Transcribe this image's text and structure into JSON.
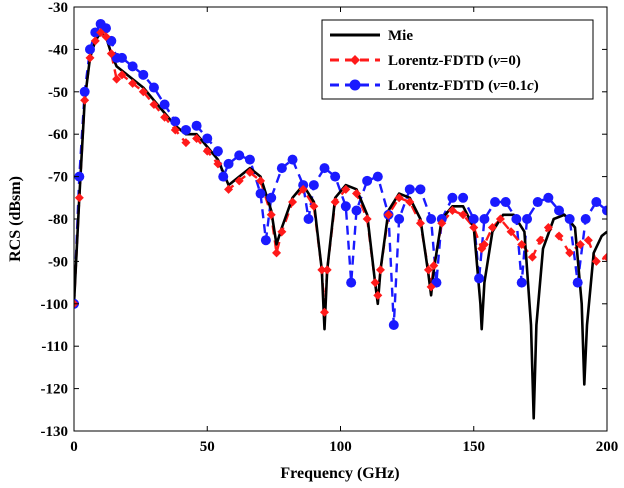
{
  "chart_data": {
    "type": "line",
    "title": "",
    "xlabel": "Frequency (GHz)",
    "ylabel": "RCS (dBsm)",
    "xlim": [
      0,
      200
    ],
    "ylim": [
      -130,
      -30
    ],
    "xticks": [
      0,
      50,
      100,
      150,
      200
    ],
    "yticks": [
      -130,
      -120,
      -110,
      -100,
      -90,
      -80,
      -70,
      -60,
      -50,
      -40,
      -30
    ],
    "xtick_labels": [
      "0",
      "50",
      "100",
      "150",
      "200"
    ],
    "ytick_labels": [
      "-130",
      "-120",
      "-110",
      "-100",
      "-90",
      "-80",
      "-70",
      "-60",
      "-50",
      "-40",
      "-30"
    ],
    "grid": false,
    "legend_position": "top-right",
    "series": [
      {
        "name": "Mie",
        "legend_main": "Mie",
        "legend_italic": "",
        "legend_tail": "",
        "color": "#000000",
        "style": "solid",
        "marker": "none",
        "x": [
          0,
          2,
          4,
          6,
          8,
          10,
          12,
          14,
          16,
          18,
          22,
          26,
          30,
          34,
          38,
          42,
          46,
          50,
          54,
          58,
          62,
          66,
          70,
          74,
          76,
          78,
          82,
          86,
          90,
          93,
          94,
          95,
          98,
          102,
          106,
          110,
          113,
          114,
          115,
          118,
          122,
          126,
          130,
          133,
          134,
          135,
          138,
          142,
          146,
          150,
          152.5,
          153,
          154,
          157,
          161,
          165,
          169,
          171.5,
          172.5,
          173.5,
          176,
          180,
          184,
          188,
          190.5,
          191.5,
          192.5,
          195,
          198,
          200
        ],
        "y": [
          -100,
          -75,
          -52,
          -42,
          -38,
          -36,
          -37,
          -41,
          -44,
          -45,
          -47,
          -49,
          -52,
          -55,
          -58,
          -60,
          -60,
          -63,
          -66,
          -72,
          -70,
          -68,
          -70,
          -78,
          -86,
          -82,
          -75,
          -72,
          -76,
          -92,
          -106,
          -92,
          -75,
          -72,
          -73,
          -79,
          -95,
          -100,
          -92,
          -78,
          -74,
          -75,
          -80,
          -93,
          -98,
          -92,
          -80,
          -77,
          -77,
          -82,
          -100,
          -106,
          -95,
          -83,
          -79,
          -79,
          -83,
          -105,
          -127,
          -105,
          -87,
          -80,
          -79,
          -82,
          -100,
          -119,
          -105,
          -88,
          -84,
          -83
        ]
      },
      {
        "name": "Lorentz-FDTD (v=0)",
        "legend_main": "Lorentz-FDTD (",
        "legend_italic": "v",
        "legend_tail": "=0)",
        "color": "#ff1a1a",
        "style": "dashed",
        "marker": "diamond",
        "x": [
          0,
          2,
          4,
          6,
          8,
          10,
          12,
          14,
          16,
          18,
          22,
          26,
          30,
          34,
          38,
          42,
          46,
          50,
          54,
          58,
          62,
          66,
          70,
          74,
          76,
          78,
          82,
          86,
          90,
          93,
          94,
          95,
          98,
          102,
          106,
          110,
          113,
          114,
          115,
          118,
          122,
          126,
          130,
          133,
          134,
          135,
          138,
          142,
          146,
          150,
          153,
          154,
          157,
          160,
          164,
          168,
          172,
          175,
          178,
          182,
          186,
          190,
          193,
          196,
          200
        ],
        "y": [
          -100,
          -75,
          -52,
          -42,
          -38,
          -36,
          -37,
          -41,
          -47,
          -46,
          -48,
          -50,
          -53,
          -56,
          -59,
          -62,
          -61,
          -64,
          -67,
          -73,
          -71,
          -69,
          -71,
          -79,
          -88,
          -83,
          -76,
          -73,
          -77,
          -92,
          -102,
          -92,
          -76,
          -73,
          -74,
          -80,
          -95,
          -98,
          -92,
          -79,
          -75,
          -76,
          -81,
          -92,
          -96,
          -91,
          -81,
          -78,
          -79,
          -82,
          -87,
          -86,
          -82,
          -80,
          -83,
          -86,
          -89,
          -85,
          -82,
          -84,
          -88,
          -86,
          -85,
          -90,
          -89
        ]
      },
      {
        "name": "Lorentz-FDTD (v=0.1c)",
        "legend_main": "Lorentz-FDTD (",
        "legend_italic": "v",
        "legend_tail": "=0.1",
        "legend_italic2": "c",
        "legend_tail2": ")",
        "color": "#1a1aff",
        "style": "dashed",
        "marker": "circle",
        "x": [
          0,
          2,
          4,
          6,
          8,
          10,
          12,
          14,
          16,
          18,
          22,
          26,
          30,
          34,
          38,
          42,
          46,
          50,
          54,
          56,
          58,
          62,
          66,
          70,
          72,
          74,
          78,
          82,
          86,
          88,
          90,
          94,
          98,
          102,
          104,
          106,
          110,
          114,
          118,
          120,
          122,
          126,
          130,
          134,
          136,
          138,
          142,
          146,
          150,
          152,
          154,
          158,
          162,
          166,
          168,
          170,
          174,
          178,
          182,
          186,
          189,
          192,
          196,
          200
        ],
        "y": [
          -100,
          -70,
          -50,
          -40,
          -36,
          -34,
          -35,
          -38,
          -42,
          -42,
          -44,
          -46,
          -49,
          -53,
          -57,
          -59,
          -58,
          -61,
          -64,
          -70,
          -67,
          -65,
          -66,
          -74,
          -85,
          -75,
          -68,
          -66,
          -72,
          -80,
          -72,
          -68,
          -70,
          -77,
          -95,
          -78,
          -71,
          -70,
          -79,
          -105,
          -80,
          -73,
          -73,
          -80,
          -95,
          -80,
          -75,
          -75,
          -80,
          -94,
          -80,
          -76,
          -76,
          -80,
          -95,
          -80,
          -76,
          -75,
          -78,
          -80,
          -95,
          -80,
          -76,
          -78
        ]
      }
    ]
  }
}
